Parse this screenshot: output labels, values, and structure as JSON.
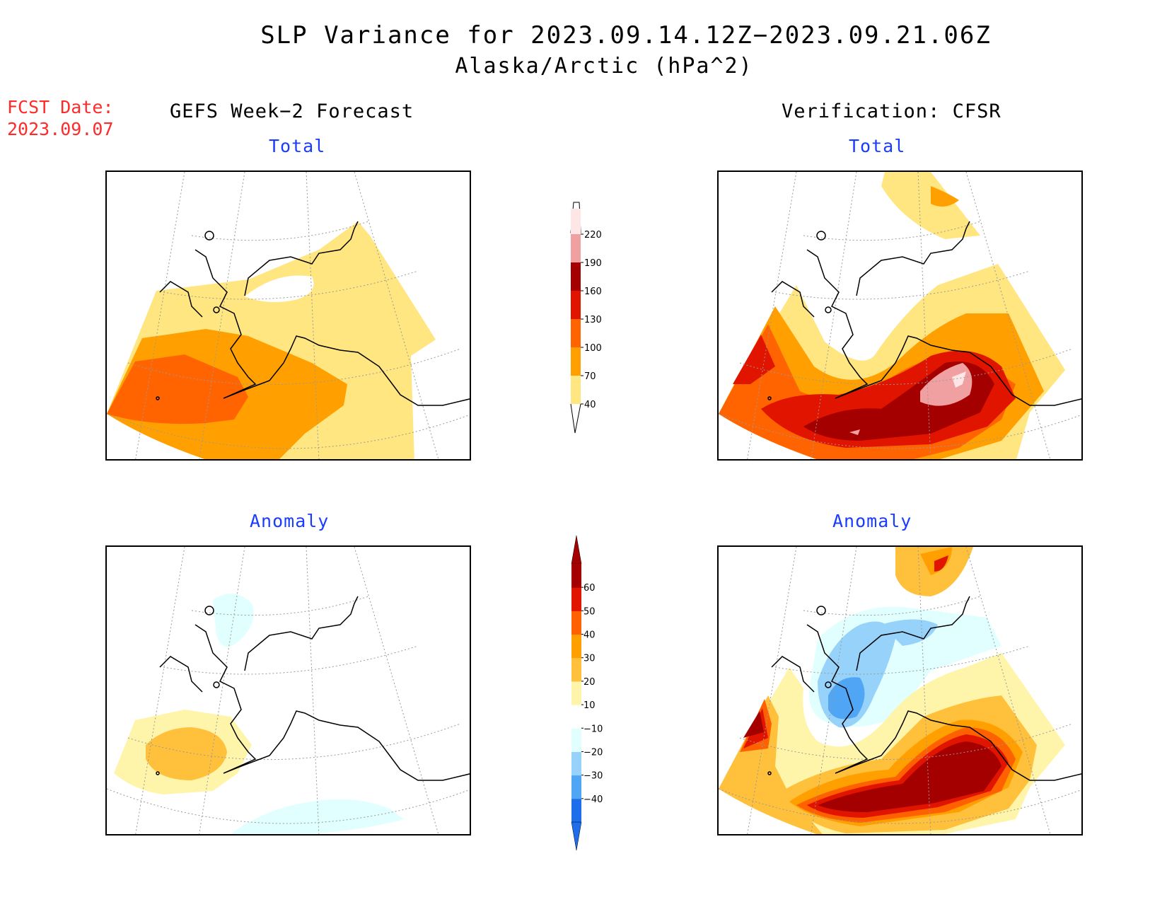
{
  "title_line1": "SLP Variance for 2023.09.14.12Z−2023.09.21.06Z",
  "title_line2": "Alaska/Arctic (hPa^2)",
  "fcst_label": "FCST Date:",
  "fcst_date": "2023.09.07",
  "columns": {
    "left": "GEFS Week−2 Forecast",
    "right": "Verification: CFSR"
  },
  "panels": {
    "top_left_title": "Total",
    "top_right_title": "Total",
    "bottom_left_title": "Anomaly",
    "bottom_right_title": "Anomaly"
  },
  "colorbar_total": {
    "ticks": [
      "40",
      "70",
      "100",
      "130",
      "160",
      "190",
      "220"
    ],
    "colors": [
      "#ffe680",
      "#ffa000",
      "#ff6400",
      "#e11400",
      "#a50000",
      "#f0a0a0",
      "#ffe6e6"
    ]
  },
  "colorbar_anomaly": {
    "ticks": [
      "−40",
      "−30",
      "−20",
      "−10",
      "10",
      "20",
      "30",
      "40",
      "50",
      "60"
    ],
    "colors": [
      "#1e6eeb",
      "#50a5f5",
      "#96d2fa",
      "#e1ffff",
      "#ffffff",
      "#fff5aa",
      "#ffc03c",
      "#ffa000",
      "#ff6000",
      "#e11400",
      "#a50000"
    ]
  }
}
